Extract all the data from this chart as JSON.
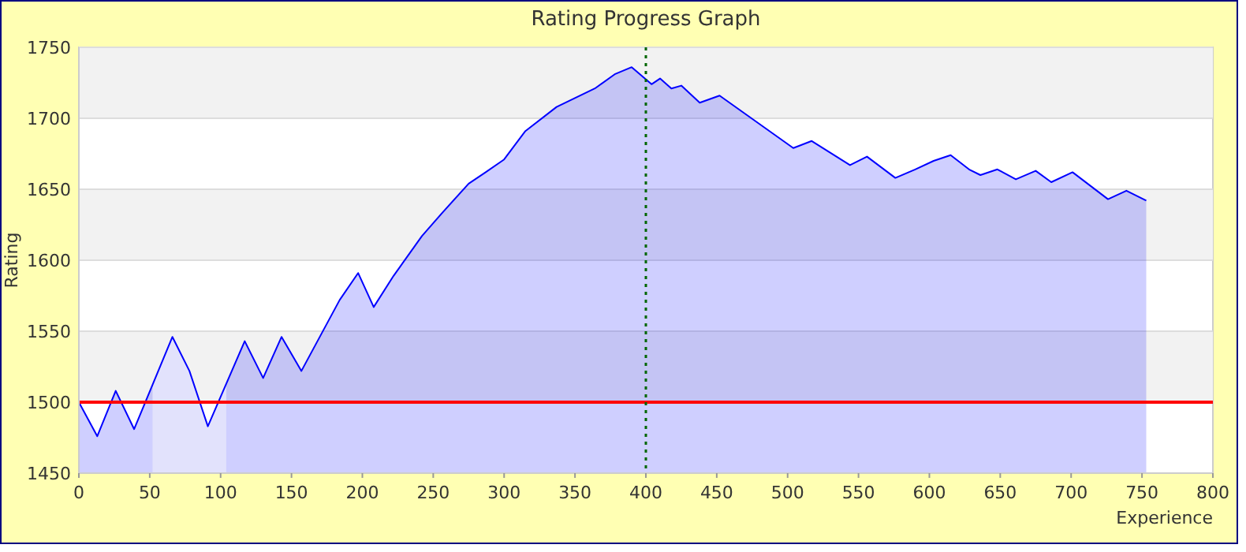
{
  "chart_data": {
    "type": "area",
    "title": "Rating Progress Graph",
    "xlabel": "Experience",
    "ylabel": "Rating",
    "x": [
      0,
      13,
      26,
      39,
      66,
      78,
      91,
      117,
      130,
      143,
      157,
      184,
      197,
      208,
      222,
      242,
      256,
      275,
      287,
      300,
      315,
      337,
      364,
      378,
      390,
      404,
      410,
      418,
      425,
      438,
      452,
      504,
      517,
      544,
      556,
      576,
      590,
      603,
      615,
      628,
      636,
      648,
      661,
      675,
      686,
      701,
      726,
      739,
      753
    ],
    "series": [
      {
        "color": "#0000ff",
        "values": [
          1500,
          1476,
          1508,
          1481,
          1546,
          1522,
          1483,
          1543,
          1517,
          1546,
          1522,
          1572,
          1591,
          1567,
          1589,
          1617,
          1633,
          1654,
          1662,
          1671,
          1691,
          1708,
          1721,
          1731,
          1736,
          1724,
          1728,
          1721,
          1723,
          1711,
          1716,
          1679,
          1684,
          1667,
          1673,
          1658,
          1664,
          1670,
          1674,
          1664,
          1660,
          1664,
          1657,
          1663,
          1655,
          1662,
          1643,
          1649,
          1642
        ]
      }
    ],
    "xlim": [
      0,
      800
    ],
    "xticks": [
      0,
      50,
      100,
      150,
      200,
      250,
      300,
      350,
      400,
      450,
      500,
      550,
      600,
      650,
      700,
      750,
      800
    ],
    "ylim": [
      1450,
      1750
    ],
    "yticks": [
      1450,
      1500,
      1550,
      1600,
      1650,
      1700,
      1750
    ],
    "ref_lines": [
      {
        "axis": "y",
        "value": 1500,
        "color": "#ff0000",
        "line_style": "solid"
      },
      {
        "axis": "x",
        "value": 400,
        "color": "#006600",
        "line_style": "dotted"
      }
    ],
    "bands": [
      {
        "axis": "x",
        "from": 52,
        "to": 104,
        "color": "#e2e2fc"
      }
    ],
    "grid": "y"
  }
}
